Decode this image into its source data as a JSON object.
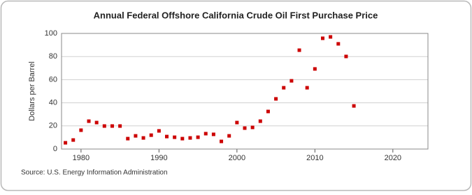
{
  "chart_data": {
    "type": "scatter",
    "title": "Annual Federal Offshore California Crude Oil First Purchase Price",
    "y_label": "Dollars per Barrel",
    "source": "Source: U.S. Energy Information Administration",
    "x": [
      1978,
      1979,
      1980,
      1981,
      1982,
      1983,
      1984,
      1985,
      1986,
      1987,
      1988,
      1989,
      1990,
      1991,
      1992,
      1993,
      1994,
      1995,
      1996,
      1997,
      1998,
      1999,
      2000,
      2001,
      2002,
      2003,
      2004,
      2005,
      2006,
      2007,
      2008,
      2009,
      2010,
      2011,
      2012,
      2013,
      2014,
      2015
    ],
    "series": [
      {
        "name": "Federal Offshore California",
        "color": "#cc0000",
        "values": [
          5.4,
          7.8,
          16.3,
          24.1,
          22.9,
          19.9,
          19.9,
          19.9,
          9.0,
          11.4,
          9.6,
          12.0,
          15.7,
          10.8,
          10.2,
          9.0,
          9.6,
          10.2,
          13.3,
          12.7,
          6.6,
          11.4,
          22.9,
          18.1,
          18.7,
          24.1,
          32.5,
          43.4,
          53.0,
          59.0,
          85.5,
          53.0,
          69.3,
          95.8,
          97.0,
          91.0,
          80.1,
          37.3
        ]
      }
    ],
    "xlim": [
      1977.5,
      2024.5
    ],
    "xticks": [
      1980,
      1990,
      2000,
      2010,
      2020
    ],
    "ylim": [
      0,
      100
    ],
    "yticks": [
      0,
      20,
      40,
      60,
      80,
      100
    ],
    "grid": true
  }
}
